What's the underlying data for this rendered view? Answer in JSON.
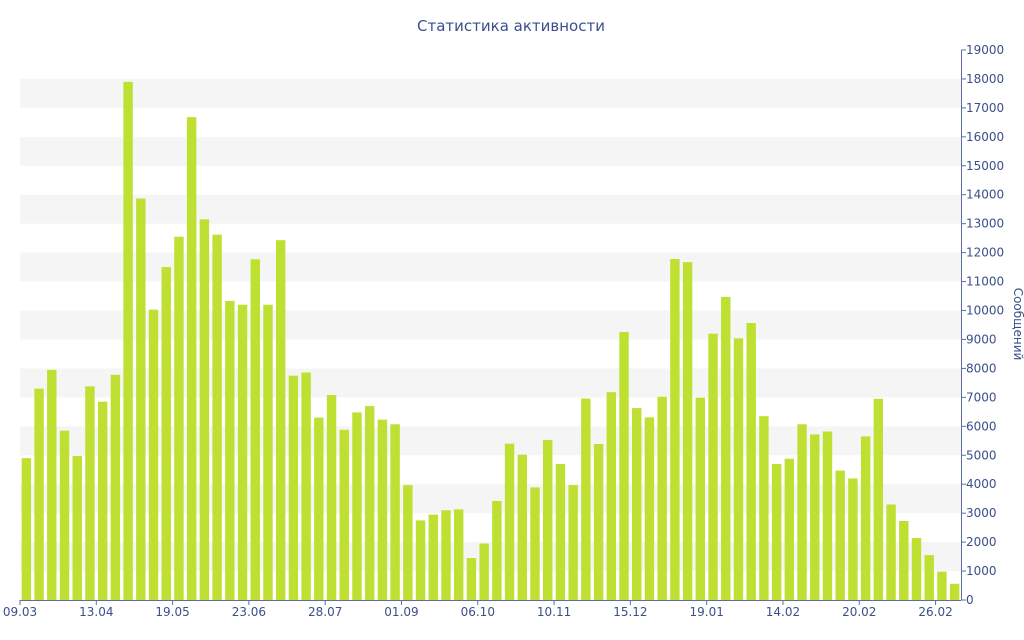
{
  "chart_data": {
    "type": "bar",
    "title": "Статистика активности",
    "ylabel": "Сообщений",
    "xlabel": "",
    "ylim": [
      0,
      19000
    ],
    "y_ticks": [
      0,
      1000,
      2000,
      3000,
      4000,
      5000,
      6000,
      7000,
      8000,
      9000,
      10000,
      11000,
      12000,
      13000,
      14000,
      15000,
      16000,
      17000,
      18000,
      19000
    ],
    "x_tick_labels": [
      "09.03",
      "13.04",
      "19.05",
      "23.06",
      "28.07",
      "01.09",
      "06.10",
      "10.11",
      "15.12",
      "19.01",
      "14.02",
      "20.02",
      "26.02"
    ],
    "x_tick_positions": [
      0,
      6,
      12,
      18,
      24,
      30,
      36,
      42,
      48,
      54,
      60,
      66,
      72
    ],
    "values": [
      4900,
      7300,
      7950,
      5850,
      4980,
      7380,
      6850,
      7780,
      17900,
      13870,
      10030,
      11500,
      12550,
      16680,
      13150,
      12620,
      10330,
      10200,
      11770,
      10200,
      12430,
      7750,
      7860,
      6300,
      7080,
      5880,
      6480,
      6700,
      6230,
      6070,
      3970,
      2750,
      2950,
      3100,
      3130,
      1450,
      1950,
      3420,
      5400,
      5020,
      3890,
      5530,
      4700,
      3970,
      6960,
      5390,
      7180,
      9260,
      6630,
      6310,
      7020,
      11780,
      11670,
      6990,
      9200,
      10470,
      9040,
      9570,
      6350,
      4700,
      4880,
      6070,
      5720,
      5820,
      4470,
      4200,
      5650,
      6950,
      3300,
      2730,
      2140,
      1550,
      980,
      560
    ],
    "grid": "horizontal bands",
    "axis_side": "right",
    "colors": {
      "bar": "#bde032",
      "text": "#3a4f8c",
      "axis": "#5c6f9c",
      "band": "#f5f5f5"
    }
  }
}
